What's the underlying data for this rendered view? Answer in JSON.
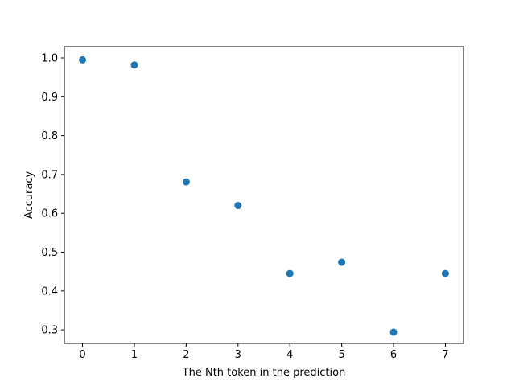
{
  "chart_data": {
    "type": "scatter",
    "title": "",
    "xlabel": "The Nth token in the prediction",
    "ylabel": "Accuracy",
    "x": [
      0,
      1,
      2,
      3,
      4,
      5,
      6,
      7
    ],
    "y": [
      0.995,
      0.982,
      0.681,
      0.62,
      0.445,
      0.474,
      0.294,
      0.445
    ],
    "xlim": [
      -0.35,
      7.35
    ],
    "ylim": [
      0.265,
      1.029
    ],
    "x_ticks": [
      0,
      1,
      2,
      3,
      4,
      5,
      6,
      7
    ],
    "x_tick_labels": [
      "0",
      "1",
      "2",
      "3",
      "4",
      "5",
      "6",
      "7"
    ],
    "y_ticks": [
      0.3,
      0.4,
      0.5,
      0.6,
      0.7,
      0.8,
      0.9,
      1.0
    ],
    "y_tick_labels": [
      "0.3",
      "0.4",
      "0.5",
      "0.6",
      "0.7",
      "0.8",
      "0.9",
      "1.0"
    ],
    "marker_color": "#1f77b4",
    "grid": false,
    "legend": "none"
  }
}
